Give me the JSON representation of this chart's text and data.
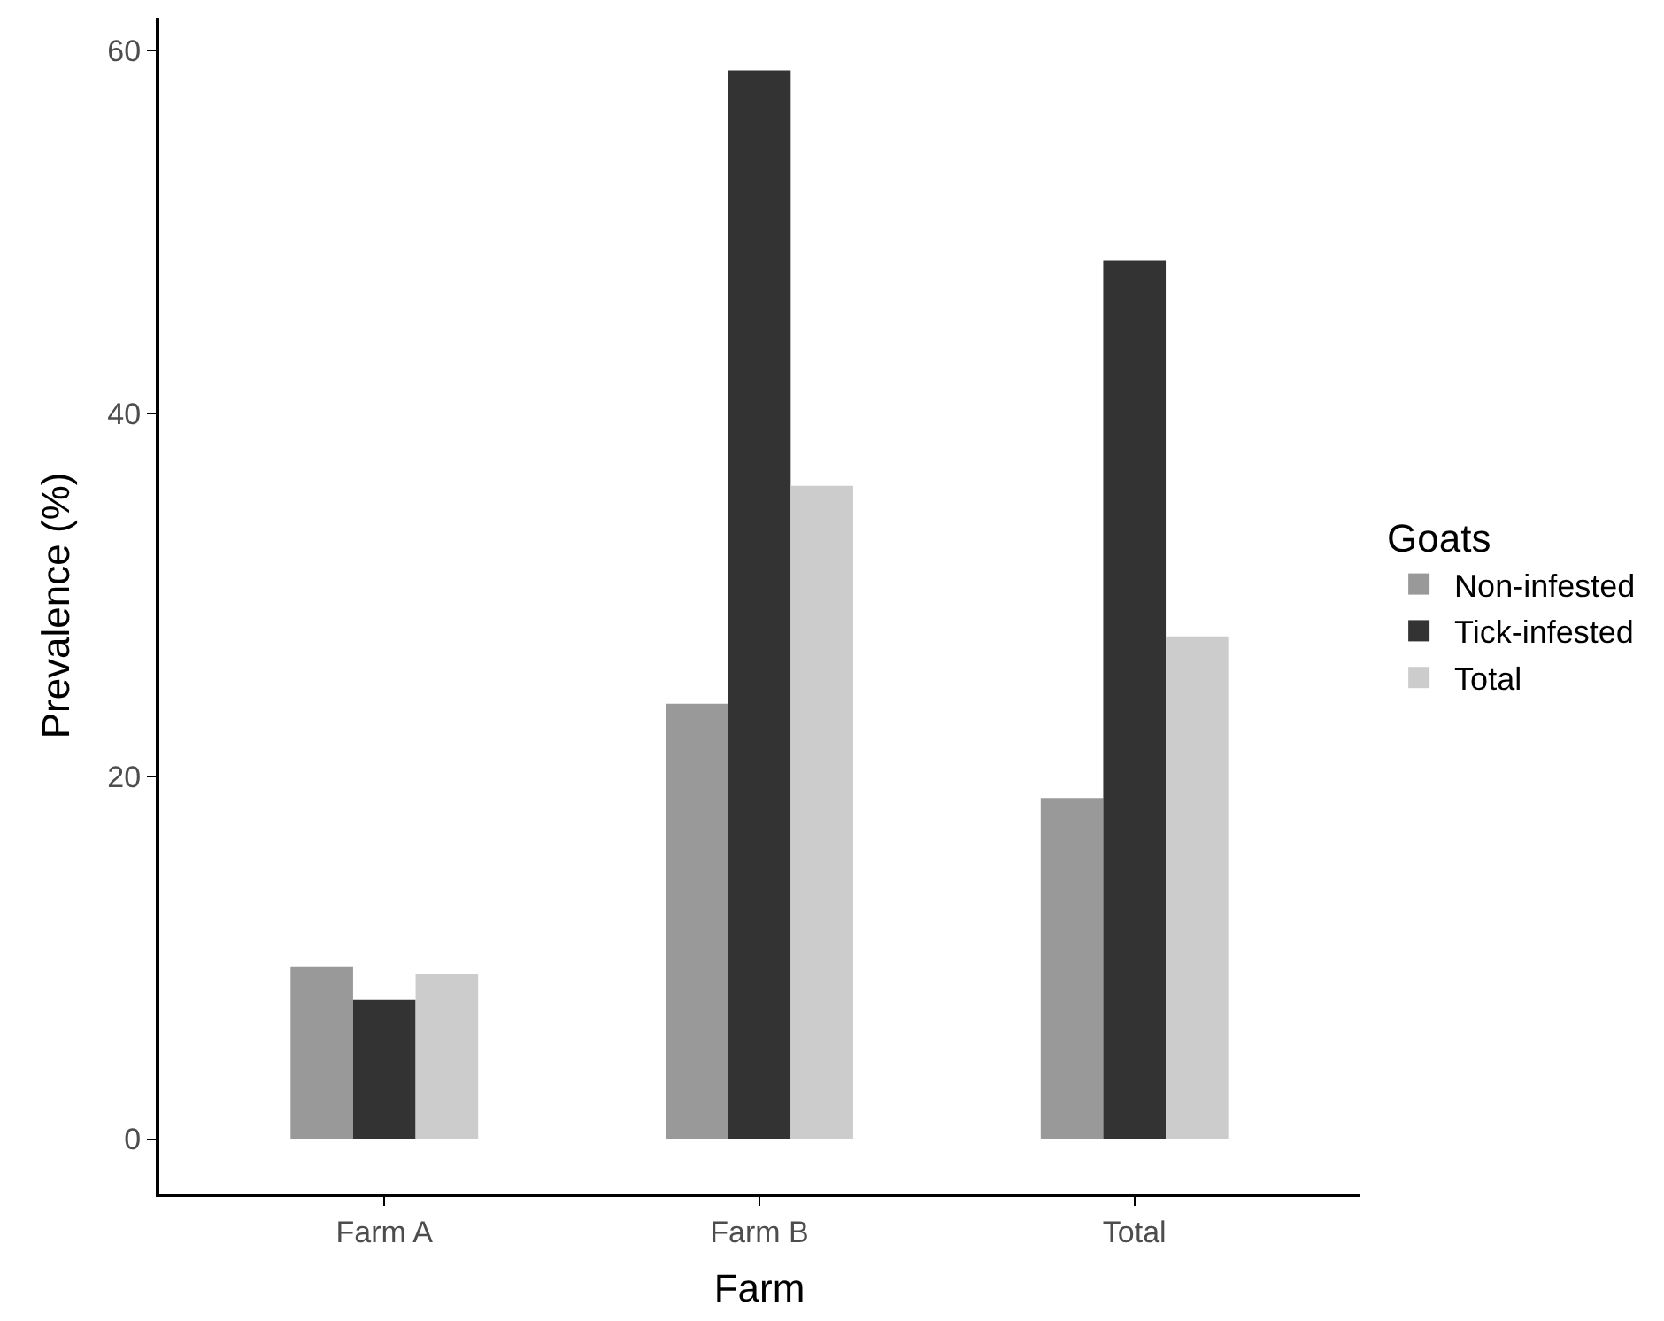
{
  "chart_data": {
    "type": "bar",
    "xlabel": "Farm",
    "ylabel": "Prevalence (%)",
    "legend_title": "Goats",
    "categories": [
      "Farm A",
      "Farm B",
      "Total"
    ],
    "series": [
      {
        "name": "Non-infested",
        "color": "#999999",
        "values": [
          9.5,
          24.0,
          18.8
        ]
      },
      {
        "name": "Tick-infested",
        "color": "#333333",
        "values": [
          7.7,
          58.9,
          48.4
        ]
      },
      {
        "name": "Total",
        "color": "#cccccc",
        "values": [
          9.1,
          36.0,
          27.7
        ]
      }
    ],
    "ylim": [
      -3,
      61.8
    ],
    "yticks": [
      0,
      20,
      40,
      60
    ],
    "legend": "right"
  }
}
